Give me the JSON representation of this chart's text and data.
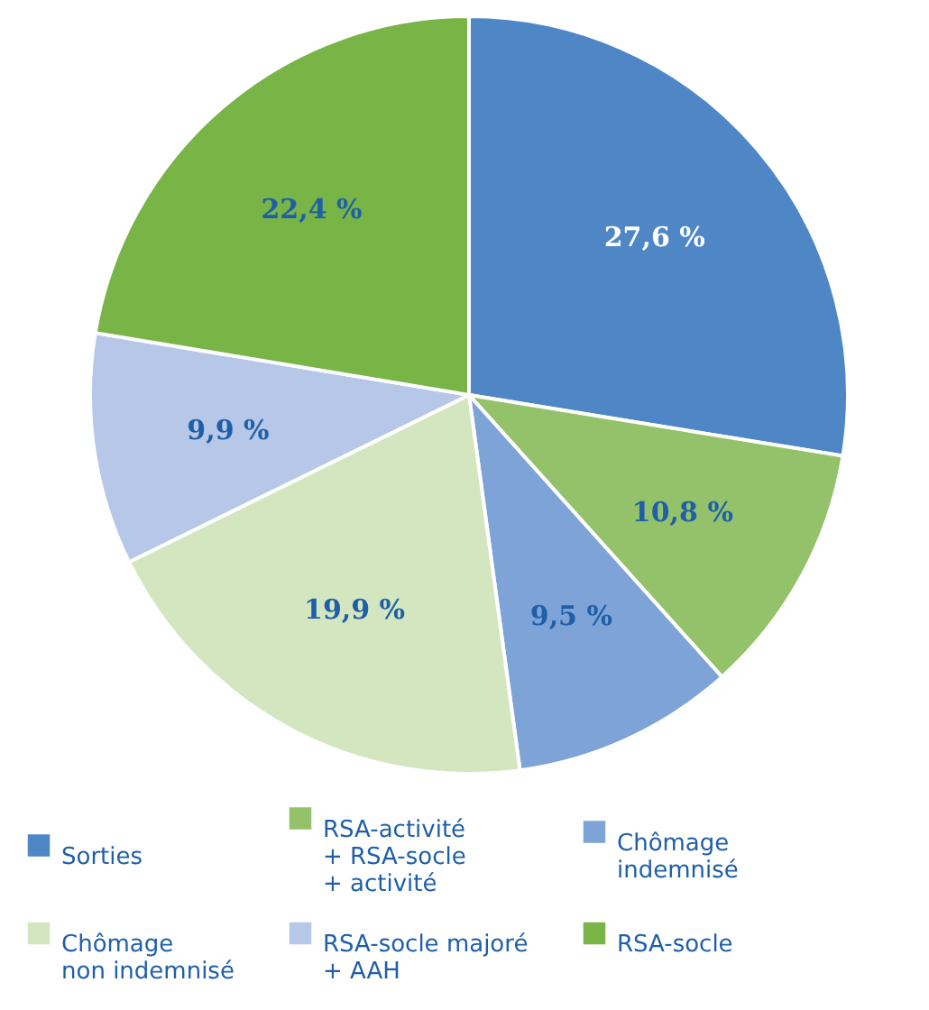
{
  "chart_data": {
    "type": "pie",
    "categories": [
      "Sorties",
      "RSA-activité\n+ RSA-socle\n+ activité",
      "Chômage\nindemnisé",
      "Chômage\nnon indemnisé",
      "RSA-socle majoré\n+ AAH",
      "RSA-socle"
    ],
    "values": [
      27.6,
      10.8,
      9.5,
      19.9,
      9.9,
      22.4
    ],
    "colors": [
      "#4f86c6",
      "#93c26a",
      "#7ea3d6",
      "#d3e6c0",
      "#b6c7e7",
      "#78b446"
    ],
    "value_labels": [
      "27,6 %",
      "10,8 %",
      "9,5 %",
      "19,9 %",
      "9,9 %",
      "22,4 %"
    ],
    "legend": "bottom"
  }
}
